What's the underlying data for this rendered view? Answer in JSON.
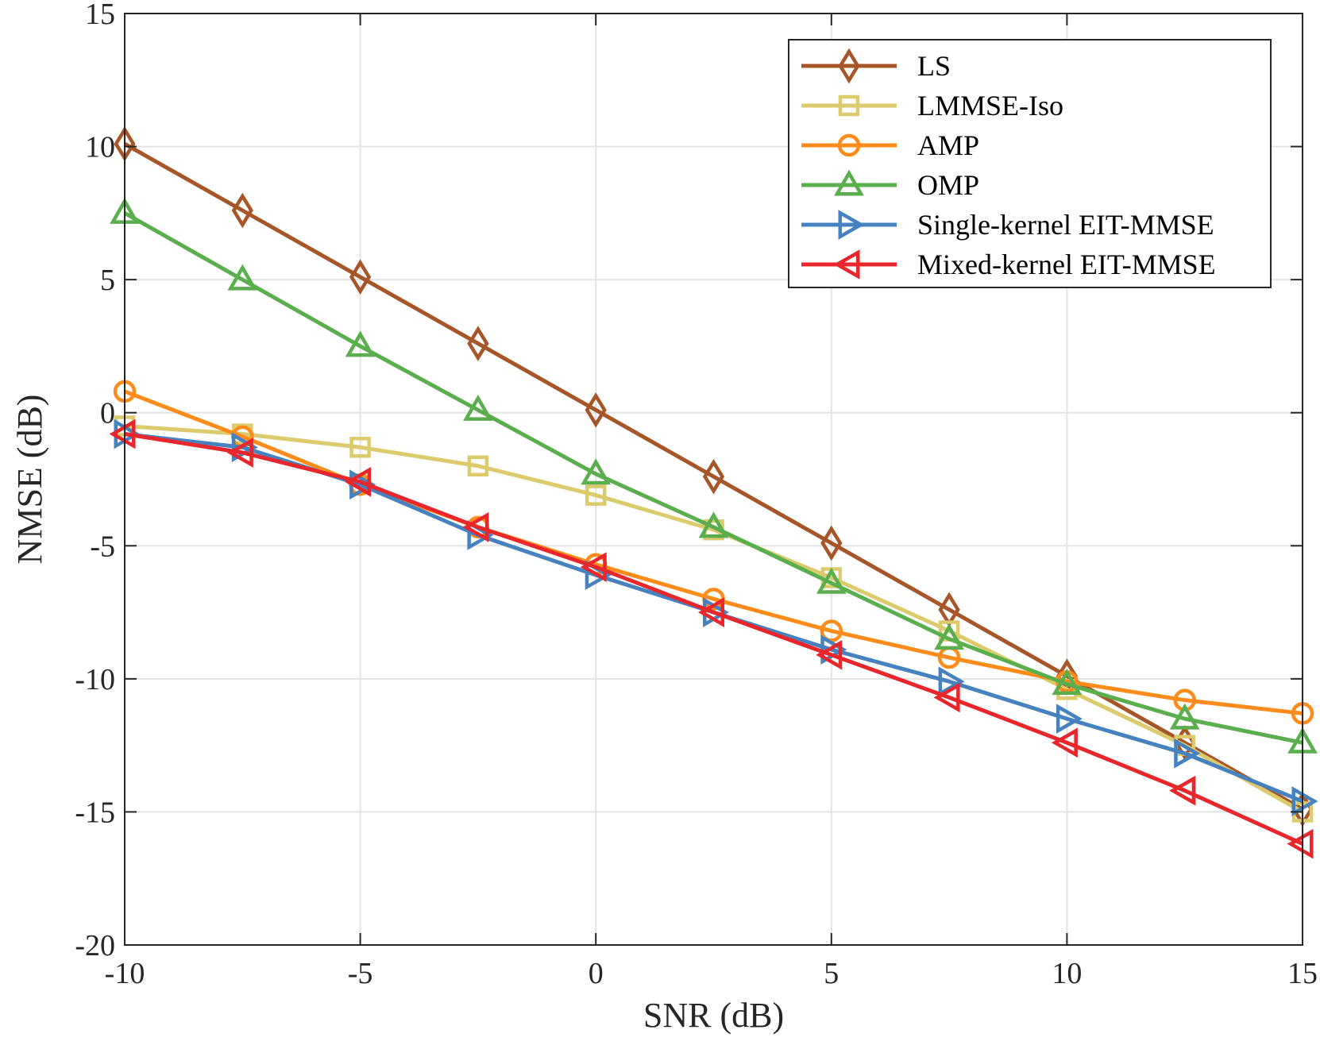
{
  "chart_data": {
    "type": "line",
    "title": "",
    "xlabel": "SNR (dB)",
    "ylabel": "NMSE (dB)",
    "xlim": [
      -10,
      15
    ],
    "ylim": [
      -20,
      15
    ],
    "xticks": [
      -10,
      -5,
      0,
      5,
      10,
      15
    ],
    "yticks": [
      -20,
      -15,
      -10,
      -5,
      0,
      5,
      10,
      15
    ],
    "xtick_labels": [
      "-10",
      "-5",
      "0",
      "5",
      "10",
      "15"
    ],
    "ytick_labels": [
      "-20",
      "-15",
      "-10",
      "-5",
      "0",
      "5",
      "10",
      "15"
    ],
    "grid": true,
    "legend_position": "top-right",
    "x": [
      -10,
      -7.5,
      -5,
      -2.5,
      0,
      2.5,
      5,
      7.5,
      10,
      12.5,
      15
    ],
    "series": [
      {
        "name": "LS",
        "color": "#A65628",
        "marker": "diamond",
        "values": [
          10.1,
          7.6,
          5.1,
          2.6,
          0.1,
          -2.4,
          -4.9,
          -7.4,
          -9.9,
          -12.4,
          -14.9
        ]
      },
      {
        "name": "LMMSE-Iso",
        "color": "#DCCB6C",
        "marker": "square",
        "values": [
          -0.5,
          -0.8,
          -1.3,
          -2.0,
          -3.1,
          -4.4,
          -6.2,
          -8.2,
          -10.4,
          -12.5,
          -15.0
        ]
      },
      {
        "name": "AMP",
        "color": "#FF8C1A",
        "marker": "circle",
        "values": [
          0.8,
          -0.9,
          -2.7,
          -4.3,
          -5.7,
          -7.0,
          -8.2,
          -9.2,
          -10.1,
          -10.8,
          -11.3
        ]
      },
      {
        "name": "OMP",
        "color": "#5AAE4E",
        "marker": "triangle-up",
        "values": [
          7.5,
          5.0,
          2.5,
          0.1,
          -2.3,
          -4.3,
          -6.4,
          -8.5,
          -10.2,
          -11.5,
          -12.4
        ]
      },
      {
        "name": "Single-kernel EIT-MMSE",
        "color": "#4682C0",
        "marker": "triangle-right",
        "values": [
          -0.8,
          -1.3,
          -2.7,
          -4.6,
          -6.1,
          -7.5,
          -8.9,
          -10.1,
          -11.5,
          -12.8,
          -14.6
        ]
      },
      {
        "name": "Mixed-kernel EIT-MMSE",
        "color": "#E8262B",
        "marker": "triangle-left",
        "values": [
          -0.8,
          -1.5,
          -2.6,
          -4.3,
          -5.8,
          -7.5,
          -9.1,
          -10.7,
          -12.4,
          -14.2,
          -16.2
        ]
      }
    ]
  }
}
